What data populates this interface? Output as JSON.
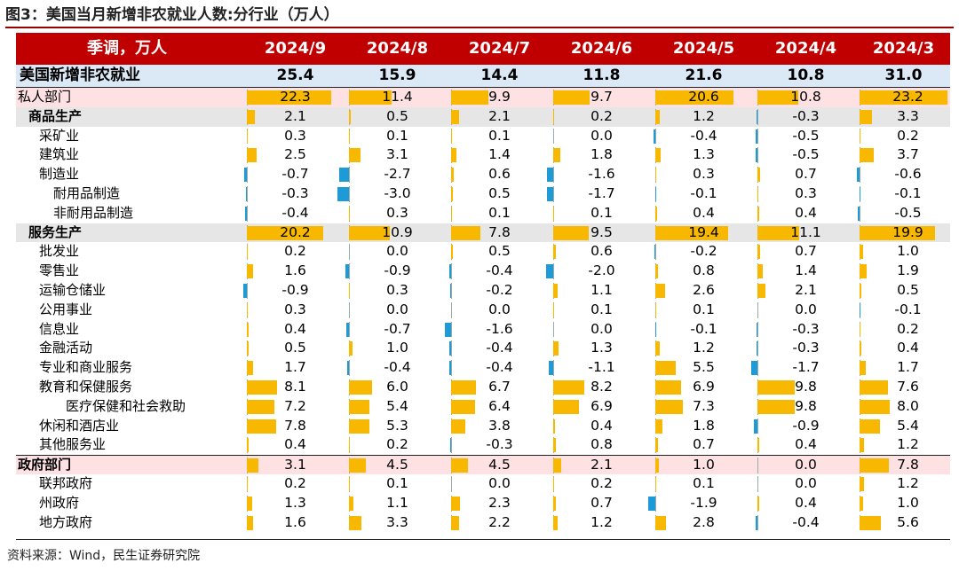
{
  "title": "图3：美国当月新增非农就业人数:分行业（万人）",
  "header": {
    "label": "季调，万人",
    "periods": [
      "2024/9",
      "2024/8",
      "2024/7",
      "2024/6",
      "2024/5",
      "2024/4",
      "2024/3"
    ]
  },
  "total": {
    "label": "美国新增非农就业",
    "values": [
      "25.4",
      "15.9",
      "14.4",
      "11.8",
      "21.6",
      "10.8",
      "31.0"
    ]
  },
  "rows": [
    {
      "label": "私人部门",
      "indent": 0,
      "bold": false,
      "style": "pink",
      "values": [
        22.3,
        11.4,
        9.9,
        9.7,
        20.6,
        10.8,
        23.2
      ]
    },
    {
      "label": "商品生产",
      "indent": 1,
      "bold": true,
      "style": "gray",
      "values": [
        2.1,
        0.5,
        2.1,
        0.2,
        1.2,
        -0.3,
        3.3
      ]
    },
    {
      "label": "采矿业",
      "indent": 2,
      "bold": false,
      "style": "",
      "values": [
        0.3,
        0.1,
        0.1,
        0.0,
        -0.4,
        -0.5,
        0.2
      ]
    },
    {
      "label": "建筑业",
      "indent": 2,
      "bold": false,
      "style": "",
      "values": [
        2.5,
        3.1,
        1.4,
        1.8,
        1.3,
        -0.5,
        3.7
      ]
    },
    {
      "label": "制造业",
      "indent": 2,
      "bold": false,
      "style": "",
      "values": [
        -0.7,
        -2.7,
        0.6,
        -1.6,
        0.3,
        0.7,
        -0.6
      ]
    },
    {
      "label": "耐用品制造",
      "indent": 3,
      "bold": false,
      "style": "",
      "values": [
        -0.3,
        -3.0,
        0.5,
        -1.7,
        -0.1,
        0.3,
        -0.1
      ]
    },
    {
      "label": "非耐用品制造",
      "indent": 3,
      "bold": false,
      "style": "",
      "values": [
        -0.4,
        0.3,
        0.1,
        0.1,
        0.4,
        0.4,
        -0.5
      ]
    },
    {
      "label": "服务生产",
      "indent": 1,
      "bold": true,
      "style": "gray",
      "values": [
        20.2,
        10.9,
        7.8,
        9.5,
        19.4,
        11.1,
        19.9
      ]
    },
    {
      "label": "批发业",
      "indent": 2,
      "bold": false,
      "style": "",
      "values": [
        0.2,
        0.0,
        0.5,
        0.6,
        -0.2,
        0.7,
        1.0
      ]
    },
    {
      "label": "零售业",
      "indent": 2,
      "bold": false,
      "style": "",
      "values": [
        1.6,
        -0.9,
        -0.4,
        -2.0,
        0.8,
        1.4,
        1.9
      ]
    },
    {
      "label": "运输仓储业",
      "indent": 2,
      "bold": false,
      "style": "",
      "values": [
        -0.9,
        0.3,
        -0.2,
        1.1,
        2.6,
        2.1,
        0.5
      ]
    },
    {
      "label": "公用事业",
      "indent": 2,
      "bold": false,
      "style": "",
      "values": [
        0.3,
        0.0,
        0.0,
        0.1,
        0.1,
        0.0,
        -0.1
      ]
    },
    {
      "label": "信息业",
      "indent": 2,
      "bold": false,
      "style": "",
      "values": [
        0.4,
        -0.7,
        -1.6,
        0.0,
        -0.1,
        -0.3,
        0.2
      ]
    },
    {
      "label": "金融活动",
      "indent": 2,
      "bold": false,
      "style": "",
      "values": [
        0.5,
        1.0,
        -0.4,
        1.3,
        1.2,
        -0.3,
        0.4
      ]
    },
    {
      "label": "专业和商业服务",
      "indent": 2,
      "bold": false,
      "style": "",
      "values": [
        1.7,
        -0.4,
        -0.4,
        -1.1,
        5.5,
        -1.7,
        1.7
      ]
    },
    {
      "label": "教育和保健服务",
      "indent": 2,
      "bold": false,
      "style": "",
      "values": [
        8.1,
        6.0,
        6.7,
        8.2,
        6.9,
        9.8,
        7.6
      ]
    },
    {
      "label": "医疗保健和社会救助",
      "indent": 4,
      "bold": false,
      "style": "",
      "values": [
        7.2,
        5.4,
        6.4,
        6.9,
        7.3,
        9.8,
        8.0
      ]
    },
    {
      "label": "休闲和酒店业",
      "indent": 2,
      "bold": false,
      "style": "",
      "values": [
        7.8,
        5.3,
        3.8,
        0.4,
        1.8,
        -0.9,
        5.4
      ]
    },
    {
      "label": "其他服务业",
      "indent": 2,
      "bold": false,
      "style": "",
      "values": [
        0.4,
        0.2,
        -0.3,
        0.8,
        0.7,
        0.4,
        1.2
      ]
    },
    {
      "label": "政府部门",
      "indent": 0,
      "bold": true,
      "style": "pink",
      "values": [
        3.1,
        4.5,
        4.5,
        2.1,
        1.0,
        0.0,
        7.8
      ]
    },
    {
      "label": "联邦政府",
      "indent": 2,
      "bold": false,
      "style": "",
      "values": [
        0.2,
        0.1,
        0.0,
        0.2,
        0.1,
        0.0,
        1.2
      ]
    },
    {
      "label": "州政府",
      "indent": 2,
      "bold": false,
      "style": "",
      "values": [
        1.3,
        1.1,
        2.3,
        0.7,
        -1.9,
        0.4,
        1.0
      ]
    },
    {
      "label": "地方政府",
      "indent": 2,
      "bold": false,
      "style": "",
      "values": [
        1.6,
        3.3,
        2.2,
        1.2,
        2.8,
        -0.4,
        5.6
      ]
    }
  ],
  "colors": {
    "header_bg": "#c00000",
    "positive_bar": "#f9b800",
    "negative_bar": "#1e9ad6",
    "total_bg": "#dbe8f6",
    "pink_bg": "#fde1e3",
    "gray_bg": "#e6e6e6"
  },
  "source": "资料来源：Wind，民生证券研究院"
}
